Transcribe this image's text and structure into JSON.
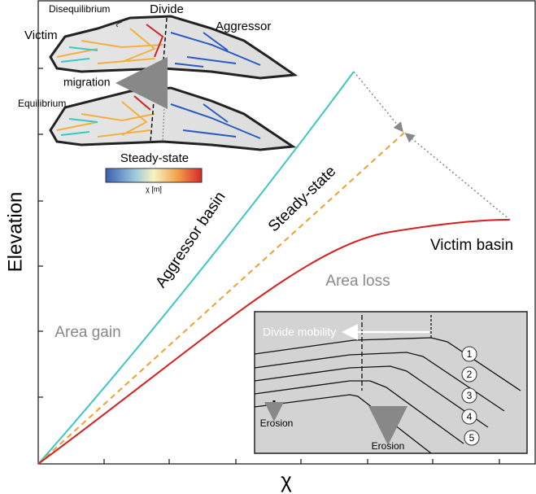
{
  "map": {
    "disequilibrium": "Disequilibrium",
    "divide": "Divide",
    "victim": "Victim",
    "aggressor": "Aggressor",
    "migration": "migration",
    "equilibrium": "Equilibrium",
    "steady_state": "Steady-state",
    "colorbar_label": "χ [m]"
  },
  "plot": {
    "y_label": "Elevation",
    "x_label": "χ",
    "aggressor_basin": "Aggressor basin",
    "steady_state": "Steady-state",
    "victim_basin": "Victim basin",
    "area_loss": "Area loss",
    "area_gain": "Area gain"
  },
  "inset": {
    "divide_mobility": "Divide mobility",
    "profiles": [
      "1",
      "2",
      "3",
      "4",
      "5"
    ],
    "erosion_left": "Erosion",
    "erosion_right": "Erosion"
  }
}
